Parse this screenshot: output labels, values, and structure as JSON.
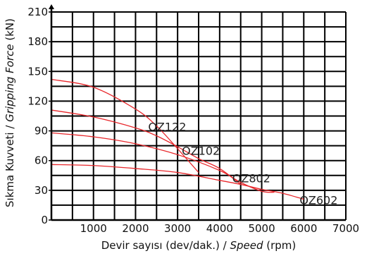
{
  "chart_data": {
    "type": "line",
    "xlabel": {
      "plain": "Devir sayısı (dev/dak.) / ",
      "italic": "Speed",
      "tail": " (rpm)"
    },
    "ylabel": {
      "plain": "Sıkma Kuvveti / ",
      "italic": "Gripping Force",
      "tail": " (kN)"
    },
    "xlim": [
      0,
      7000
    ],
    "ylim": [
      0,
      210
    ],
    "x_ticks": [
      1000,
      2000,
      3000,
      4000,
      5000,
      6000,
      7000
    ],
    "y_ticks": [
      0,
      30,
      60,
      90,
      120,
      150,
      180,
      210
    ],
    "x_grid_step": 500,
    "y_grid_step": 15,
    "grid": true,
    "line_color": "#e8272b",
    "series": [
      {
        "name": "OZ122",
        "x": [
          0,
          1000,
          2000,
          2500,
          3000,
          3500
        ],
        "y": [
          142,
          134,
          112,
          95,
          72,
          48
        ]
      },
      {
        "name": "OZ102",
        "x": [
          0,
          1000,
          2000,
          2500,
          3000,
          3500,
          4000,
          4500
        ],
        "y": [
          111,
          104,
          93,
          85,
          74,
          62,
          52,
          36
        ]
      },
      {
        "name": "OZ802",
        "x": [
          0,
          1000,
          2000,
          3000,
          4000,
          4500,
          5000,
          5300
        ],
        "y": [
          88,
          84,
          77,
          66,
          50,
          38,
          29,
          28
        ]
      },
      {
        "name": "OZ602",
        "x": [
          0,
          1000,
          2000,
          3000,
          4000,
          4500,
          5000,
          5500,
          6000
        ],
        "y": [
          56,
          55,
          52,
          48,
          40,
          36,
          31,
          27,
          21
        ]
      }
    ],
    "label_anchor_x": [
      2300,
      3100,
      4300,
      5900
    ],
    "label_anchor_y": [
      90,
      66,
      38,
      16
    ]
  }
}
